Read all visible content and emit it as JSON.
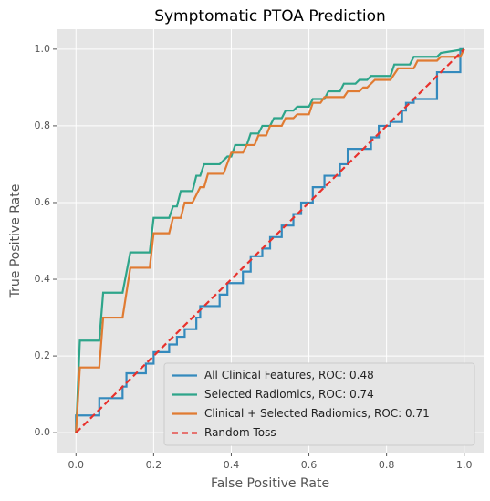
{
  "chart_data": {
    "type": "line",
    "title": "Symptomatic PTOA Prediction",
    "xlabel": "False Positive Rate",
    "ylabel": "True Positive Rate",
    "xlim": [
      -0.05,
      1.05
    ],
    "ylim": [
      -0.052,
      1.052
    ],
    "xticks": [
      {
        "value": 0,
        "label": "0.0"
      },
      0.2,
      0.4,
      0.6,
      0.8,
      {
        "value": 1,
        "label": "1.0"
      }
    ],
    "yticks": [
      {
        "value": 0,
        "label": "0.0"
      },
      0.2,
      0.4,
      0.6,
      0.8,
      {
        "value": 1,
        "label": "1.0"
      }
    ],
    "grid": true,
    "legend": "lower right",
    "series": [
      {
        "name": "All Clinical Features, ROC:  0.48",
        "color": "#348abd",
        "x": [
          0,
          0,
          0.06,
          0.06,
          0.12,
          0.12,
          0.13,
          0.13,
          0.18,
          0.18,
          0.2,
          0.2,
          0.24,
          0.24,
          0.26,
          0.26,
          0.28,
          0.28,
          0.31,
          0.31,
          0.32,
          0.32,
          0.37,
          0.37,
          0.39,
          0.39,
          0.43,
          0.43,
          0.45,
          0.45,
          0.48,
          0.48,
          0.5,
          0.5,
          0.53,
          0.53,
          0.56,
          0.56,
          0.58,
          0.58,
          0.61,
          0.61,
          0.64,
          0.64,
          0.68,
          0.68,
          0.7,
          0.7,
          0.76,
          0.76,
          0.78,
          0.78,
          0.81,
          0.81,
          0.84,
          0.84,
          0.85,
          0.85,
          0.87,
          0.87,
          0.93,
          0.93,
          0.99,
          0.99,
          1.0
        ],
        "values": [
          0,
          0.045,
          0.045,
          0.09,
          0.09,
          0.12,
          0.12,
          0.155,
          0.155,
          0.18,
          0.18,
          0.21,
          0.21,
          0.23,
          0.23,
          0.25,
          0.25,
          0.27,
          0.27,
          0.3,
          0.3,
          0.33,
          0.33,
          0.36,
          0.36,
          0.39,
          0.39,
          0.42,
          0.42,
          0.46,
          0.46,
          0.48,
          0.48,
          0.51,
          0.51,
          0.54,
          0.54,
          0.57,
          0.57,
          0.6,
          0.6,
          0.64,
          0.64,
          0.67,
          0.67,
          0.7,
          0.7,
          0.74,
          0.74,
          0.77,
          0.77,
          0.8,
          0.8,
          0.81,
          0.81,
          0.84,
          0.84,
          0.86,
          0.86,
          0.87,
          0.87,
          0.94,
          0.94,
          1.0,
          1.0
        ]
      },
      {
        "name": "Selected Radiomics, ROC:  0.74",
        "color": "#2ea58a",
        "x": [
          0,
          0.01,
          0.06,
          0.07,
          0.12,
          0.14,
          0.19,
          0.2,
          0.24,
          0.25,
          0.26,
          0.27,
          0.3,
          0.31,
          0.32,
          0.33,
          0.37,
          0.39,
          0.4,
          0.41,
          0.44,
          0.45,
          0.47,
          0.48,
          0.5,
          0.51,
          0.53,
          0.54,
          0.56,
          0.57,
          0.6,
          0.61,
          0.64,
          0.65,
          0.68,
          0.69,
          0.72,
          0.73,
          0.75,
          0.76,
          0.81,
          0.82,
          0.86,
          0.87,
          0.93,
          0.94,
          1.0
        ],
        "values": [
          0,
          0.24,
          0.24,
          0.365,
          0.365,
          0.47,
          0.47,
          0.56,
          0.56,
          0.59,
          0.59,
          0.63,
          0.63,
          0.67,
          0.67,
          0.7,
          0.7,
          0.72,
          0.72,
          0.75,
          0.75,
          0.78,
          0.78,
          0.8,
          0.8,
          0.82,
          0.82,
          0.84,
          0.84,
          0.85,
          0.85,
          0.87,
          0.87,
          0.89,
          0.89,
          0.91,
          0.91,
          0.92,
          0.92,
          0.93,
          0.93,
          0.96,
          0.96,
          0.98,
          0.98,
          0.99,
          1.0
        ]
      },
      {
        "name": "Clinical + Selected Radiomics, ROC:  0.71",
        "color": "#e07b32",
        "x": [
          0,
          0.01,
          0.06,
          0.07,
          0.12,
          0.14,
          0.19,
          0.2,
          0.24,
          0.25,
          0.27,
          0.28,
          0.3,
          0.32,
          0.33,
          0.34,
          0.38,
          0.4,
          0.43,
          0.44,
          0.46,
          0.47,
          0.49,
          0.5,
          0.53,
          0.54,
          0.56,
          0.57,
          0.6,
          0.61,
          0.63,
          0.64,
          0.69,
          0.7,
          0.73,
          0.74,
          0.75,
          0.77,
          0.81,
          0.83,
          0.87,
          0.88,
          0.93,
          0.94,
          0.99,
          1.0
        ],
        "values": [
          0,
          0.17,
          0.17,
          0.3,
          0.3,
          0.43,
          0.43,
          0.52,
          0.52,
          0.56,
          0.56,
          0.6,
          0.6,
          0.64,
          0.64,
          0.675,
          0.675,
          0.73,
          0.73,
          0.75,
          0.75,
          0.775,
          0.775,
          0.8,
          0.8,
          0.82,
          0.82,
          0.83,
          0.83,
          0.86,
          0.86,
          0.875,
          0.875,
          0.89,
          0.89,
          0.9,
          0.9,
          0.92,
          0.92,
          0.95,
          0.95,
          0.97,
          0.97,
          0.98,
          0.98,
          1.0
        ]
      },
      {
        "name": "Random Toss",
        "color": "#e8312c",
        "dashed": true,
        "x": [
          0,
          1
        ],
        "values": [
          0,
          1
        ]
      }
    ]
  }
}
